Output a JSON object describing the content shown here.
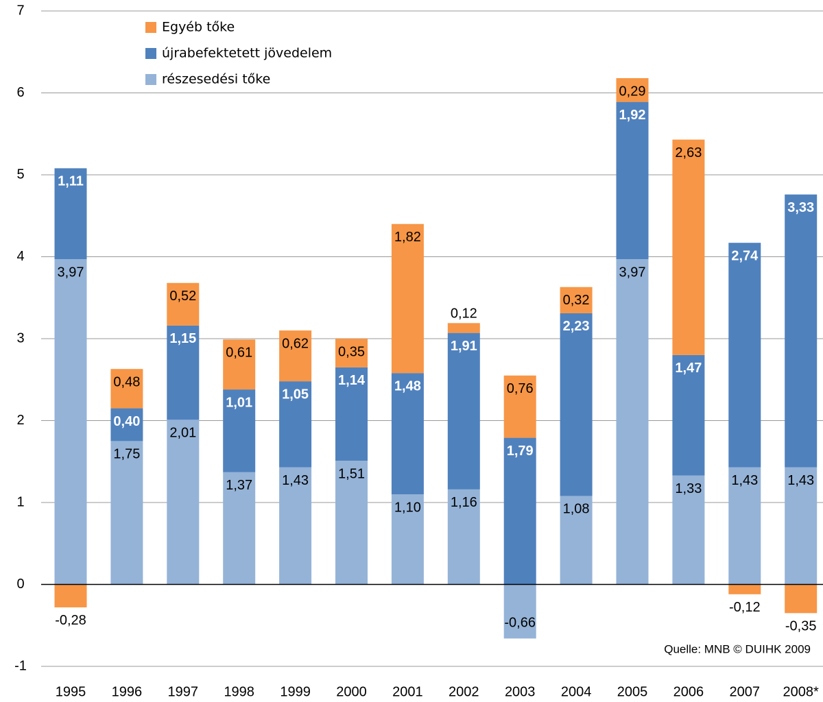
{
  "chart_data": {
    "type": "stacked_bar",
    "categories": [
      "1995",
      "1996",
      "1997",
      "1998",
      "1999",
      "2000",
      "2001",
      "2002",
      "2003",
      "2004",
      "2005",
      "2006",
      "2007",
      "2008*"
    ],
    "series": [
      {
        "name": "részesedési tőke",
        "color": "#95b3d7",
        "label_color": "#000000",
        "values": [
          3.97,
          1.75,
          2.01,
          1.37,
          1.43,
          1.51,
          1.1,
          1.16,
          -0.66,
          1.08,
          3.97,
          1.33,
          1.43,
          1.43
        ],
        "value_labels": [
          "3,97",
          "1,75",
          "2,01",
          "1,37",
          "1,43",
          "1,51",
          "1,10",
          "1,16",
          "-0,66",
          "1,08",
          "3,97",
          "1,33",
          "1,43",
          "1,43"
        ]
      },
      {
        "name": "újrabefektetett jövedelem",
        "color": "#4f81bd",
        "label_color": "#ffffff",
        "values": [
          1.11,
          0.4,
          1.15,
          1.01,
          1.05,
          1.14,
          1.48,
          1.91,
          1.79,
          2.23,
          1.92,
          1.47,
          2.74,
          3.33
        ],
        "value_labels": [
          "1,11",
          "0,40",
          "1,15",
          "1,01",
          "1,05",
          "1,14",
          "1,48",
          "1,91",
          "1,79",
          "2,23",
          "1,92",
          "1,47",
          "2,74",
          "3,33"
        ]
      },
      {
        "name": "Egyéb tőke",
        "color": "#f79646",
        "label_color": "#000000",
        "values": [
          -0.28,
          0.48,
          0.52,
          0.61,
          0.62,
          0.35,
          1.82,
          0.12,
          0.76,
          0.32,
          0.29,
          2.63,
          -0.12,
          -0.35
        ],
        "value_labels": [
          "-0,28",
          "0,48",
          "0,52",
          "0,61",
          "0,62",
          "0,35",
          "1,82",
          "0,12",
          "0,76",
          "0,32",
          "0,29",
          "2,63",
          "-0,12",
          "-0,35"
        ]
      }
    ],
    "ylim": [
      -1,
      7
    ],
    "yticks": [
      -1,
      0,
      1,
      2,
      3,
      4,
      5,
      6,
      7
    ],
    "grid": true,
    "source": "Quelle: MNB  © DUIHK 2009"
  }
}
